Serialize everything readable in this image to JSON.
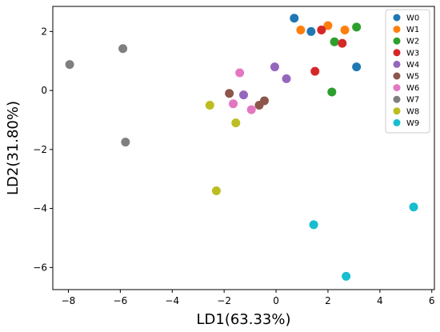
{
  "chart_data": {
    "type": "scatter",
    "title": "",
    "xlabel": "LD1(63.33%)",
    "ylabel": "LD2(31.80%)",
    "xlim": [
      -8.6,
      6.1
    ],
    "ylim": [
      -6.75,
      2.85
    ],
    "xticks": [
      -8,
      -6,
      -4,
      -2,
      0,
      2,
      4,
      6
    ],
    "yticks": [
      -6,
      -4,
      -2,
      0,
      2
    ],
    "xtick_labels": [
      "−8",
      "−6",
      "−4",
      "−2",
      "0",
      "2",
      "4",
      "6"
    ],
    "ytick_labels": [
      "−6",
      "−4",
      "−2",
      "0",
      "2"
    ],
    "grid": false,
    "legend_position": "top-right",
    "series": [
      {
        "name": "W0",
        "color": "#1f77b4",
        "points": [
          [
            0.7,
            2.45
          ],
          [
            1.35,
            2.0
          ],
          [
            3.1,
            0.8
          ]
        ]
      },
      {
        "name": "W1",
        "color": "#ff7f0e",
        "points": [
          [
            0.95,
            2.05
          ],
          [
            2.0,
            2.2
          ],
          [
            2.65,
            2.05
          ]
        ]
      },
      {
        "name": "W2",
        "color": "#2ca02c",
        "points": [
          [
            3.1,
            2.15
          ],
          [
            2.25,
            1.65
          ],
          [
            2.15,
            -0.05
          ]
        ]
      },
      {
        "name": "W3",
        "color": "#d62728",
        "points": [
          [
            1.75,
            2.05
          ],
          [
            2.55,
            1.6
          ],
          [
            1.5,
            0.65
          ]
        ]
      },
      {
        "name": "W4",
        "color": "#9467bd",
        "points": [
          [
            -0.05,
            0.8
          ],
          [
            0.4,
            0.4
          ],
          [
            -1.25,
            -0.15
          ]
        ]
      },
      {
        "name": "W5",
        "color": "#8c564b",
        "points": [
          [
            -1.8,
            -0.1
          ],
          [
            -0.45,
            -0.35
          ],
          [
            -0.65,
            -0.5
          ]
        ]
      },
      {
        "name": "W6",
        "color": "#e377c2",
        "points": [
          [
            -1.4,
            0.6
          ],
          [
            -1.65,
            -0.45
          ],
          [
            -0.95,
            -0.65
          ]
        ]
      },
      {
        "name": "W7",
        "color": "#7f7f7f",
        "points": [
          [
            -7.95,
            0.88
          ],
          [
            -5.9,
            1.42
          ],
          [
            -5.8,
            -1.75
          ]
        ]
      },
      {
        "name": "W8",
        "color": "#bcbd22",
        "points": [
          [
            -2.55,
            -0.5
          ],
          [
            -1.55,
            -1.1
          ],
          [
            -2.3,
            -3.4
          ]
        ]
      },
      {
        "name": "W9",
        "color": "#17becf",
        "points": [
          [
            5.3,
            -3.95
          ],
          [
            1.45,
            -4.55
          ],
          [
            2.7,
            -6.3
          ]
        ]
      }
    ]
  }
}
